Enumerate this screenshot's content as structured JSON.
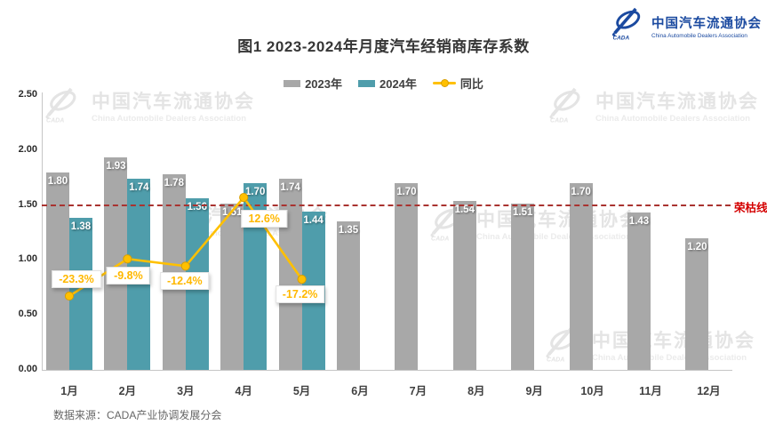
{
  "header": {
    "title": "图1  2023-2024年月度汽车经销商库存系数"
  },
  "logo": {
    "name_cn": "中国汽车流通协会",
    "name_en": "China Automobile Dealers Association",
    "acronym": "CADA",
    "brand_color": "#1b4aa0"
  },
  "watermark": {
    "text_cn": "中国汽车流通协会",
    "text_en": "China Automobile Dealers Association"
  },
  "legend": [
    {
      "label": "2023年",
      "type": "swatch",
      "color": "#a8a8a8"
    },
    {
      "label": "2024年",
      "type": "swatch",
      "color": "#4f9dab"
    },
    {
      "label": "同比",
      "type": "line-dot",
      "color": "#ffc000"
    }
  ],
  "chart_data": {
    "type": "bar",
    "title": "图1  2023-2024年月度汽车经销商库存系数",
    "categories": [
      "1月",
      "2月",
      "3月",
      "4月",
      "5月",
      "6月",
      "7月",
      "8月",
      "9月",
      "10月",
      "11月",
      "12月"
    ],
    "series": [
      {
        "name": "2023年",
        "type": "bar",
        "color": "#a8a8a8",
        "values": [
          1.8,
          1.93,
          1.78,
          1.51,
          1.74,
          1.35,
          1.7,
          1.54,
          1.51,
          1.7,
          1.43,
          1.2
        ]
      },
      {
        "name": "2024年",
        "type": "bar",
        "color": "#4f9dab",
        "values": [
          1.38,
          1.74,
          1.56,
          1.7,
          1.44,
          null,
          null,
          null,
          null,
          null,
          null,
          null
        ]
      },
      {
        "name": "同比",
        "type": "line",
        "color": "#ffc000",
        "values_percent": [
          -23.3,
          -9.8,
          -12.4,
          12.6,
          -17.2,
          null,
          null,
          null,
          null,
          null,
          null,
          null
        ],
        "labels": [
          "-23.3%",
          "-9.8%",
          "-12.4%",
          "12.6%",
          "-17.2%"
        ]
      }
    ],
    "y_axis": {
      "min": 0,
      "max": 2.5,
      "step": 0.5,
      "ticks": [
        "0.00",
        "0.50",
        "1.00",
        "1.50",
        "2.00",
        "2.50"
      ]
    },
    "secondary_axis": {
      "hidden": true,
      "unit": "%"
    },
    "reference_line": {
      "value": 1.5,
      "label": "荣枯线",
      "line_color": "#a93330",
      "label_color": "#d40000"
    },
    "grid": false,
    "legend_position": "top"
  },
  "footer": {
    "source": "数据来源：CADA产业协调发展分会"
  }
}
